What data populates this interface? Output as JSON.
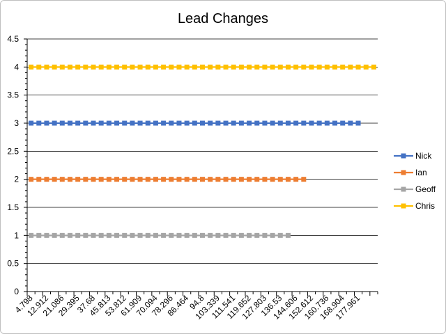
{
  "chart_data": {
    "type": "line",
    "title": "Lead Changes",
    "xlabel": "",
    "ylabel": "",
    "ylim": [
      0,
      4.5
    ],
    "y_ticks": [
      "0",
      "0.5",
      "1",
      "1.5",
      "2",
      "2.5",
      "3",
      "3.5",
      "4",
      "4.5"
    ],
    "x_tick_labels": [
      "4.798",
      "12.912",
      "21.086",
      "29.395",
      "37.68",
      "45.813",
      "53.812",
      "61.909",
      "70.094",
      "78.296",
      "86.464",
      "94.8",
      "103.339",
      "111.541",
      "119.652",
      "127.803",
      "136.53",
      "144.606",
      "152.612",
      "160.736",
      "168.904",
      "177.961"
    ],
    "x_positions": 45,
    "grid": true,
    "legend": "right",
    "series": [
      {
        "name": "Nick",
        "color": "#4472C4",
        "value": 3,
        "points": 43
      },
      {
        "name": "Ian",
        "color": "#ED7D31",
        "value": 2,
        "points": 36
      },
      {
        "name": "Geoff",
        "color": "#A5A5A5",
        "value": 1,
        "points": 34
      },
      {
        "name": "Chris",
        "color": "#FFC000",
        "value": 4,
        "points": 45
      }
    ]
  }
}
